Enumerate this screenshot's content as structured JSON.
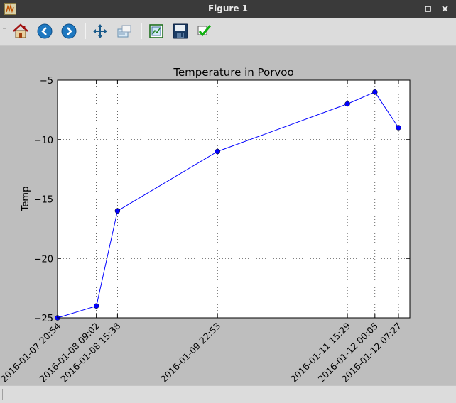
{
  "window": {
    "title": "Figure 1"
  },
  "toolbar": {
    "buttons": [
      {
        "name": "home",
        "icon": "home-icon"
      },
      {
        "name": "back",
        "icon": "back-arrow-icon"
      },
      {
        "name": "forward",
        "icon": "forward-arrow-icon"
      },
      {
        "name": "pan",
        "icon": "pan-move-icon"
      },
      {
        "name": "zoom",
        "icon": "zoom-rect-icon"
      },
      {
        "name": "subplots",
        "icon": "subplots-config-icon"
      },
      {
        "name": "save",
        "icon": "floppy-disk-icon"
      },
      {
        "name": "edit",
        "icon": "checkmark-icon"
      }
    ]
  },
  "chart_data": {
    "type": "line",
    "title": "Temperature in Porvoo",
    "ylabel": "Temp",
    "xlabel": "",
    "ylim": [
      -25,
      -5
    ],
    "yticks": [
      -5,
      -10,
      -15,
      -20,
      -25
    ],
    "ytick_labels": [
      "−5",
      "−10",
      "−15",
      "−20",
      "−25"
    ],
    "xlim": [
      "2016-01-07 20:54",
      "2016-01-12 11:00"
    ],
    "xticks": [
      "2016-01-07 20:54",
      "2016-01-08 09:02",
      "2016-01-08 15:38",
      "2016-01-09 22:53",
      "2016-01-11 15:29",
      "2016-01-12 00:05",
      "2016-01-12 07:27"
    ],
    "grid": true,
    "series": [
      {
        "color": "#0000ff",
        "marker": "circle",
        "x": [
          "2016-01-07 20:54",
          "2016-01-08 09:02",
          "2016-01-08 15:38",
          "2016-01-09 22:53",
          "2016-01-11 15:29",
          "2016-01-12 00:05",
          "2016-01-12 07:27"
        ],
        "y": [
          -25,
          -24,
          -16,
          -11,
          -7,
          -6,
          -9
        ]
      }
    ]
  }
}
